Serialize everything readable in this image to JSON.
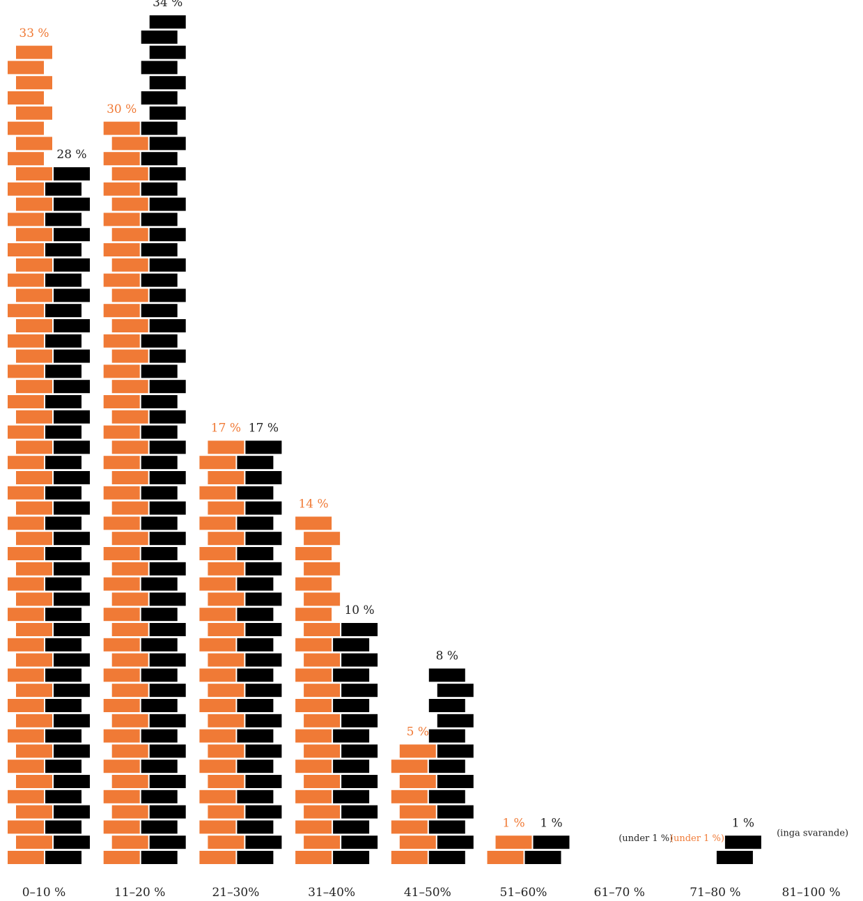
{
  "chart_data": {
    "type": "bar",
    "categories": [
      "0–10 %",
      "11–20 %",
      "21–30%",
      "31–40%",
      "41–50%",
      "51–60%",
      "61–70 %",
      "71–80 %",
      "81–100 %"
    ],
    "series": [
      {
        "color": "#f07a36",
        "values": [
          33,
          30,
          17,
          14,
          5,
          1,
          0,
          0,
          0
        ]
      },
      {
        "color": "#000000",
        "values": [
          28,
          34,
          17,
          10,
          8,
          1,
          0,
          1,
          0
        ]
      }
    ],
    "value_labels": [
      [
        "33 %",
        "30 %",
        "17 %",
        "14 %",
        "5 %",
        "1 %",
        "",
        "(under 1 %)",
        ""
      ],
      [
        "28 %",
        "34 %",
        "17 %",
        "10 %",
        "8 %",
        "1 %",
        "(under 1 %)",
        "1 %",
        ""
      ]
    ],
    "category_notes": [
      "",
      "",
      "",
      "",
      "",
      "",
      "",
      "",
      "(inga svarande)"
    ],
    "ylim": [
      0,
      34
    ],
    "grid": false,
    "legend": "none"
  }
}
